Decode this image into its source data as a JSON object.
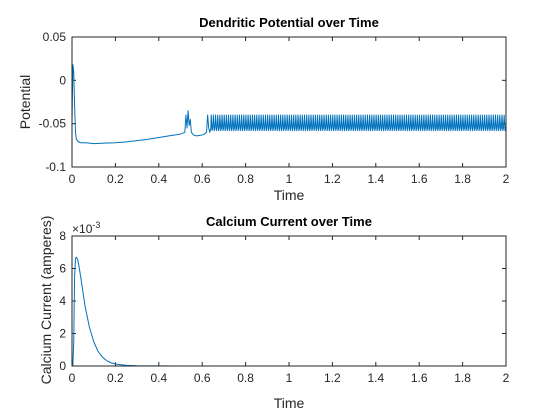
{
  "chart_data": [
    {
      "type": "line",
      "title": "Dendritic Potential over Time",
      "xlabel": "Time",
      "ylabel": "Potential",
      "xlim": [
        0,
        2
      ],
      "ylim": [
        -0.1,
        0.05
      ],
      "xticks": [
        0,
        0.2,
        0.4,
        0.6,
        0.8,
        1,
        1.2,
        1.4,
        1.6,
        1.8,
        2
      ],
      "xtick_labels": [
        "0",
        "0.2",
        "0.4",
        "0.6",
        "0.8",
        "1",
        "1.2",
        "1.4",
        "1.6",
        "1.8",
        "2"
      ],
      "yticks": [
        -0.1,
        -0.05,
        0,
        0.05
      ],
      "ytick_labels": [
        "-0.1",
        "-0.05",
        "0",
        "0.05"
      ],
      "grid": false,
      "color": "#0072BD",
      "series": [
        {
          "x": [
            0,
            0.004,
            0.008,
            0.012,
            0.016,
            0.02,
            0.03,
            0.04,
            0.06,
            0.08,
            0.1,
            0.15,
            0.2,
            0.25,
            0.3,
            0.35,
            0.4,
            0.45,
            0.5,
            0.52,
            0.525,
            0.53,
            0.535,
            0.54,
            0.545,
            0.55,
            0.56,
            0.57,
            0.58,
            0.59,
            0.6,
            0.61,
            0.62,
            0.625,
            0.63,
            0.635,
            0.64
          ],
          "y": [
            -0.05,
            0.018,
            0.01,
            -0.03,
            -0.06,
            -0.068,
            -0.071,
            -0.072,
            -0.072,
            -0.0725,
            -0.073,
            -0.0725,
            -0.072,
            -0.071,
            -0.0695,
            -0.068,
            -0.066,
            -0.064,
            -0.062,
            -0.06,
            -0.04,
            -0.055,
            -0.035,
            -0.052,
            -0.045,
            -0.06,
            -0.063,
            -0.064,
            -0.064,
            -0.0635,
            -0.063,
            -0.062,
            -0.06,
            -0.04,
            -0.055,
            -0.06,
            -0.055
          ]
        }
      ],
      "oscillation": {
        "start": 0.64,
        "end": 2.0,
        "period": 0.01,
        "min": -0.058,
        "max": -0.04
      }
    },
    {
      "type": "line",
      "title": "Calcium Current over Time",
      "xlabel": "Time",
      "ylabel": "Calcium Current (amperes)",
      "xlim": [
        0,
        2
      ],
      "ylim": [
        0,
        8
      ],
      "y_multiplier": "10",
      "y_exponent": "-3",
      "xticks": [
        0,
        0.2,
        0.4,
        0.6,
        0.8,
        1,
        1.2,
        1.4,
        1.6,
        1.8,
        2
      ],
      "xtick_labels": [
        "0",
        "0.2",
        "0.4",
        "0.6",
        "0.8",
        "1",
        "1.2",
        "1.4",
        "1.6",
        "1.8",
        "2"
      ],
      "yticks": [
        0,
        2,
        4,
        6,
        8
      ],
      "ytick_labels": [
        "0",
        "2",
        "4",
        "6",
        "8"
      ],
      "grid": false,
      "color": "#0072BD",
      "series": [
        {
          "x": [
            0,
            0.004,
            0.008,
            0.012,
            0.016,
            0.02,
            0.025,
            0.03,
            0.04,
            0.05,
            0.06,
            0.08,
            0.1,
            0.12,
            0.14,
            0.16,
            0.18,
            0.2,
            0.25,
            0.3,
            0.4,
            0.5,
            0.6,
            0.8,
            1.0,
            1.2,
            1.4,
            1.6,
            1.8,
            2.0
          ],
          "y": [
            0,
            0,
            1.5,
            5.5,
            6.6,
            6.7,
            6.6,
            6.3,
            5.5,
            4.6,
            3.7,
            2.4,
            1.5,
            0.9,
            0.55,
            0.33,
            0.2,
            0.12,
            0.04,
            0.015,
            0.005,
            0.002,
            0.001,
            0.001,
            0.001,
            0.001,
            0.001,
            0.001,
            0.001,
            0.001
          ]
        }
      ]
    }
  ]
}
